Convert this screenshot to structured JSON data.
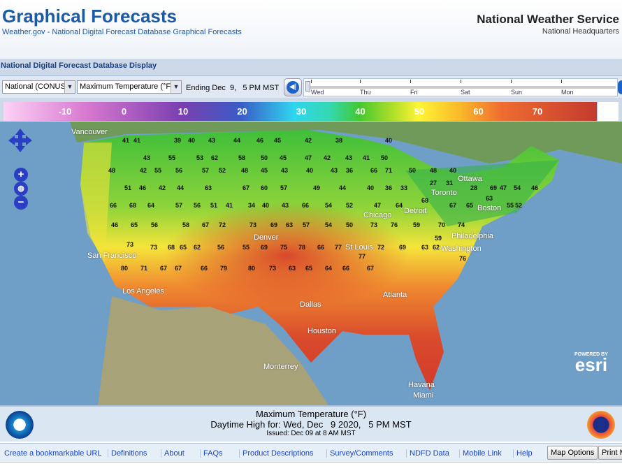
{
  "header": {
    "title": "Graphical Forecasts",
    "subtitle_link": "Weather.gov",
    "subtitle_rest": " - National Digital Forecast Database Graphical Forecasts",
    "agency": "National Weather Service",
    "office": "National Headquarters"
  },
  "display_title": "National Digital Forecast Database Display",
  "toolbar": {
    "region": "National (CONUS)",
    "element": "Maximum Temperature (°F)",
    "ending": "Ending Dec  9,   5 PM MST",
    "days": [
      "Wed",
      "Thu",
      "Fri",
      "Sat",
      "Sun",
      "Mon"
    ]
  },
  "scale": {
    "labels": [
      "-10",
      "0",
      "10",
      "20",
      "30",
      "40",
      "50",
      "60",
      "70"
    ],
    "units": "°F"
  },
  "map": {
    "cities": [
      "Vancouver",
      "Ottawa",
      "Toronto",
      "Boston",
      "Detroit",
      "Chicago",
      "Philadelphia",
      "Washington",
      "St Louis",
      "Denver",
      "San Francisco",
      "Los Angeles",
      "Dallas",
      "Houston",
      "Atlanta",
      "Miami",
      "Monterrey",
      "Havana"
    ],
    "temps": [
      "41",
      "41",
      "39",
      "40",
      "43",
      "44",
      "46",
      "45",
      "42",
      "38",
      "40",
      "43",
      "55",
      "53",
      "62",
      "58",
      "50",
      "45",
      "47",
      "42",
      "43",
      "41",
      "50",
      "48",
      "42",
      "55",
      "56",
      "57",
      "52",
      "48",
      "45",
      "43",
      "40",
      "43",
      "36",
      "66",
      "71",
      "50",
      "48",
      "40",
      "51",
      "46",
      "42",
      "44",
      "63",
      "67",
      "60",
      "57",
      "49",
      "44",
      "40",
      "36",
      "33",
      "27",
      "31",
      "28",
      "69",
      "47",
      "54",
      "46",
      "66",
      "68",
      "64",
      "57",
      "56",
      "51",
      "41",
      "34",
      "40",
      "43",
      "66",
      "54",
      "52",
      "47",
      "64",
      "68",
      "67",
      "65",
      "63",
      "55",
      "52",
      "46",
      "65",
      "56",
      "58",
      "67",
      "72",
      "73",
      "69",
      "63",
      "57",
      "54",
      "50",
      "73",
      "76",
      "59",
      "70",
      "74",
      "73",
      "73",
      "68",
      "65",
      "62",
      "56",
      "55",
      "69",
      "75",
      "78",
      "66",
      "77",
      "77",
      "72",
      "69",
      "63",
      "62",
      "59",
      "76",
      "80",
      "71",
      "67",
      "67",
      "66",
      "79",
      "80",
      "73",
      "63",
      "65",
      "64",
      "66",
      "67"
    ],
    "esri_powered": "POWERED BY",
    "esri": "esri"
  },
  "caption": {
    "line1": "Maximum Temperature (°F)",
    "line2": "Daytime High for: Wed, Dec   9 2020,   5 PM MST",
    "line3": "Issued: Dec 09 at 8 AM MST"
  },
  "footer": {
    "links": [
      "Create a bookmarkable URL",
      "Definitions",
      "About",
      "FAQs",
      "Product Descriptions",
      "Survey/Comments",
      "NDFD Data",
      "Mobile Link",
      "Help"
    ],
    "map_options": "Map Options",
    "print": "Print Map"
  }
}
